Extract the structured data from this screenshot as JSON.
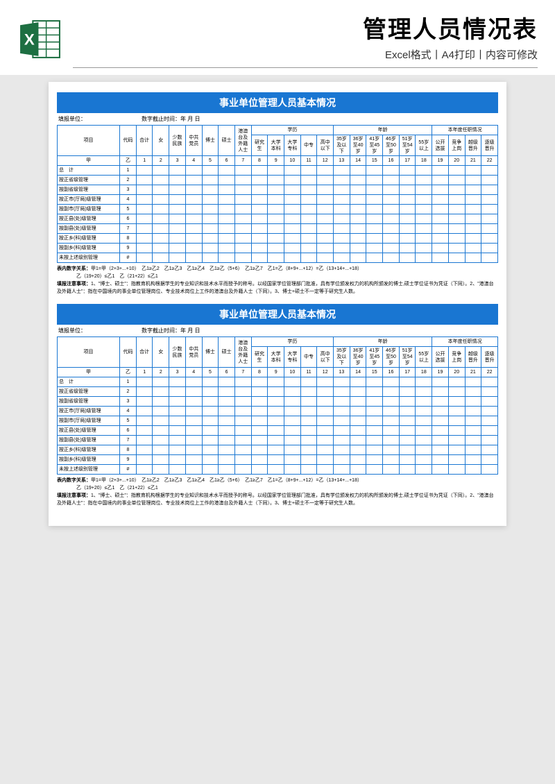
{
  "header": {
    "main_title": "管理人员情况表",
    "sub_title": "Excel格式丨A4打印丨内容可修改"
  },
  "sheet": {
    "title": "事业单位管理人员基本情况",
    "unit_label": "填报单位：",
    "date_label": "数字截止时间：年 月 日",
    "group_headers": {
      "item": "项目",
      "code": "代码",
      "total": "合计",
      "edu": "学历",
      "age": "年龄",
      "promo": "本年度任职情况"
    },
    "cols": [
      "女",
      "少数民族",
      "中共党员",
      "博士",
      "硕士",
      "港澳台及外籍人士",
      "研究生",
      "大学本科",
      "大学专科",
      "中专",
      "高中以下",
      "35岁及以下",
      "36岁至40岁",
      "41岁至45岁",
      "46岁至50岁",
      "51岁至54岁",
      "55岁以上",
      "公开选拔",
      "竞争上岗",
      "越级晋升",
      "逐级晋升"
    ],
    "index_row": {
      "jia": "甲",
      "yi": "乙"
    },
    "col_nums": [
      "1",
      "2",
      "3",
      "4",
      "5",
      "6",
      "7",
      "8",
      "9",
      "10",
      "11",
      "12",
      "13",
      "14",
      "15",
      "16",
      "17",
      "18",
      "19",
      "20",
      "21",
      "22"
    ],
    "rows": [
      {
        "label": "总　计",
        "code": "1"
      },
      {
        "label": "按正省级管理",
        "code": "2"
      },
      {
        "label": "按副省级管理",
        "code": "3"
      },
      {
        "label": "按正市(厅局)级管理",
        "code": "4"
      },
      {
        "label": "按副市(厅局)级管理",
        "code": "5"
      },
      {
        "label": "按正县(处)级管理",
        "code": "6"
      },
      {
        "label": "按副县(处)级管理",
        "code": "7"
      },
      {
        "label": "按正乡(科)级管理",
        "code": "8"
      },
      {
        "label": "按副乡(科)级管理",
        "code": "9"
      },
      {
        "label": "未按上述级别管理",
        "code": "#"
      }
    ],
    "note1_label": "表内数字关系：",
    "note1": "甲1=甲（2+3+...+10）　乙1≥乙2　乙1≥乙3　乙1≥乙4　乙1≥乙（5+6）　乙1≥乙7　乙1=乙（8+9+...+12）=乙（13+14+...+18）",
    "note1b": "乙（19+20）≤乙1　乙（21+22）≤乙1",
    "note2_label": "填报注意事项：",
    "note2": "1、\"博士、硕士\"：指教育机构根据学生的专业知识和技术水平而授予的称号。以经国家学位管理部门批准，具有学位颁发权力的机构所颁发的博士,硕士学位证书为凭证（下同）。2、\"港澳台及外籍人士\"：指在中国境内的事业单位管理岗位、专业技术岗位上工作的港澳台及外籍人士（下同）。3、博士+硕士不一定等于研究生人数。"
  },
  "colors": {
    "primary": "#1976d2",
    "excel_green": "#1d6f42"
  }
}
